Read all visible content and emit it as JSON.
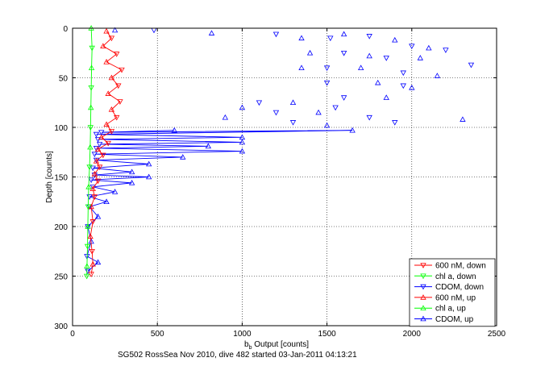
{
  "chart_data": {
    "type": "scatter",
    "title": "",
    "xlabel_main": "b",
    "xlabel_sub": "b",
    "xlabel_rest": " Output [counts]",
    "ylabel": "Depth [counts]",
    "caption": "SG502 RossSea Nov 2010, dive 482 started 03-Jan-2011 04:13:21",
    "xlim": [
      0,
      2500
    ],
    "ylim": [
      300,
      0
    ],
    "x_ticks": [
      0,
      500,
      1000,
      1500,
      2000,
      2500
    ],
    "y_ticks": [
      0,
      50,
      100,
      150,
      200,
      250,
      300
    ],
    "grid": true,
    "legend_position": "bottom-right",
    "series": [
      {
        "name": "600 nM, down",
        "color": "#ff0000",
        "marker": "triangle-down",
        "connected": true
      },
      {
        "name": "chl a, down",
        "color": "#00ff00",
        "marker": "triangle-down",
        "connected": true
      },
      {
        "name": "CDOM, down",
        "color": "#0000ff",
        "marker": "triangle-down",
        "connected": true
      },
      {
        "name": "600 nM, up",
        "color": "#ff0000",
        "marker": "triangle-up",
        "connected": true
      },
      {
        "name": "chl a, up",
        "color": "#00ff00",
        "marker": "triangle-up",
        "connected": true
      },
      {
        "name": "CDOM, up",
        "color": "#0000ff",
        "marker": "triangle-up",
        "connected": true
      }
    ],
    "profiles": {
      "red": {
        "points": [
          [
            200,
            3
          ],
          [
            230,
            10
          ],
          [
            180,
            18
          ],
          [
            260,
            26
          ],
          [
            200,
            34
          ],
          [
            290,
            42
          ],
          [
            230,
            50
          ],
          [
            270,
            58
          ],
          [
            210,
            66
          ],
          [
            280,
            74
          ],
          [
            230,
            82
          ],
          [
            260,
            90
          ],
          [
            200,
            97
          ],
          [
            230,
            104
          ],
          [
            170,
            110
          ],
          [
            210,
            116
          ],
          [
            150,
            122
          ],
          [
            180,
            128
          ],
          [
            140,
            134
          ],
          [
            160,
            140
          ],
          [
            130,
            147
          ],
          [
            150,
            154
          ],
          [
            120,
            162
          ],
          [
            130,
            170
          ],
          [
            110,
            180
          ],
          [
            120,
            195
          ],
          [
            105,
            210
          ],
          [
            115,
            225
          ],
          [
            120,
            238
          ],
          [
            110,
            248
          ]
        ]
      },
      "green": {
        "points": [
          [
            110,
            0
          ],
          [
            115,
            20
          ],
          [
            112,
            40
          ],
          [
            110,
            60
          ],
          [
            108,
            80
          ],
          [
            106,
            100
          ],
          [
            104,
            120
          ],
          [
            100,
            140
          ],
          [
            95,
            160
          ],
          [
            92,
            180
          ],
          [
            90,
            200
          ],
          [
            88,
            220
          ],
          [
            85,
            240
          ],
          [
            84,
            250
          ]
        ]
      },
      "blue_zigzag": {
        "points": [
          [
            600,
            103
          ],
          [
            170,
            105
          ],
          [
            1650,
            103
          ],
          [
            140,
            107
          ],
          [
            1000,
            110
          ],
          [
            150,
            112
          ],
          [
            1000,
            115
          ],
          [
            160,
            117
          ],
          [
            800,
            119
          ],
          [
            140,
            121
          ],
          [
            1000,
            124
          ],
          [
            130,
            127
          ],
          [
            650,
            130
          ],
          [
            140,
            133
          ],
          [
            450,
            137
          ],
          [
            120,
            141
          ],
          [
            350,
            145
          ],
          [
            130,
            148
          ],
          [
            450,
            150
          ],
          [
            110,
            153
          ],
          [
            350,
            156
          ],
          [
            120,
            160
          ],
          [
            250,
            165
          ],
          [
            100,
            170
          ],
          [
            200,
            175
          ],
          [
            100,
            180
          ],
          [
            150,
            190
          ],
          [
            90,
            200
          ],
          [
            110,
            215
          ],
          [
            85,
            230
          ],
          [
            150,
            236
          ],
          [
            90,
            245
          ]
        ]
      },
      "blue_scatter": {
        "points": [
          [
            250,
            2
          ],
          [
            480,
            2
          ],
          [
            820,
            5
          ],
          [
            1200,
            6
          ],
          [
            1350,
            10
          ],
          [
            1520,
            10
          ],
          [
            1600,
            6
          ],
          [
            1750,
            8
          ],
          [
            1900,
            12
          ],
          [
            2000,
            18
          ],
          [
            2100,
            20
          ],
          [
            2200,
            22
          ],
          [
            1400,
            25
          ],
          [
            1600,
            25
          ],
          [
            1750,
            28
          ],
          [
            1850,
            30
          ],
          [
            2050,
            30
          ],
          [
            2350,
            37
          ],
          [
            1350,
            40
          ],
          [
            1500,
            40
          ],
          [
            1700,
            40
          ],
          [
            1950,
            45
          ],
          [
            2150,
            48
          ],
          [
            1500,
            55
          ],
          [
            1800,
            55
          ],
          [
            1950,
            58
          ],
          [
            2000,
            60
          ],
          [
            1600,
            70
          ],
          [
            1850,
            70
          ],
          [
            1100,
            75
          ],
          [
            1300,
            75
          ],
          [
            1550,
            80
          ],
          [
            1000,
            80
          ],
          [
            1200,
            85
          ],
          [
            1450,
            85
          ],
          [
            1750,
            90
          ],
          [
            900,
            90
          ],
          [
            1300,
            95
          ],
          [
            2300,
            92
          ],
          [
            1900,
            95
          ],
          [
            1500,
            98
          ]
        ]
      }
    }
  }
}
